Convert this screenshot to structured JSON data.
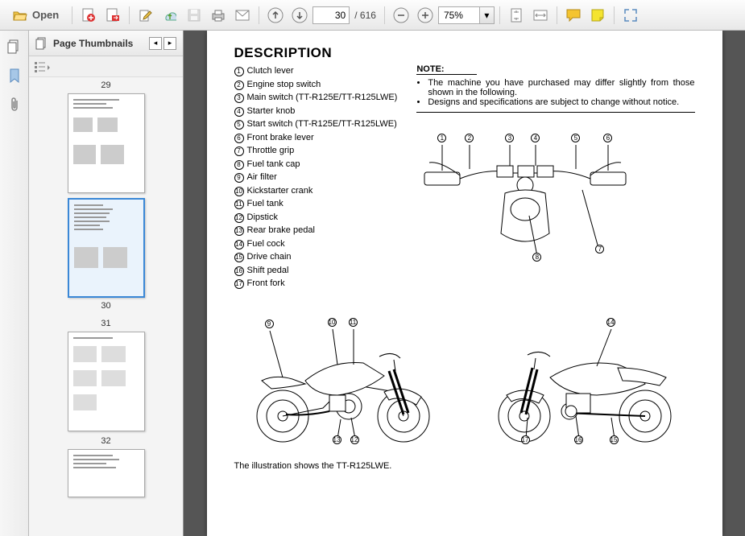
{
  "toolbar": {
    "open_label": "Open",
    "page_current": "30",
    "page_total": "/  616",
    "zoom_value": "75%"
  },
  "thumbs": {
    "title": "Page Thumbnails",
    "pages": [
      "29",
      "30",
      "31",
      "32"
    ],
    "selected_index": 1
  },
  "doc": {
    "heading": "DESCRIPTION",
    "parts": [
      "Clutch lever",
      "Engine stop switch",
      "Main switch (TT-R125E/TT-R125LWE)",
      "Starter knob",
      "Start switch (TT-R125E/TT-R125LWE)",
      "Front brake lever",
      "Throttle grip",
      "Fuel tank cap",
      "Air filter",
      "Kickstarter crank",
      "Fuel tank",
      "Dipstick",
      "Rear brake pedal",
      "Fuel cock",
      "Drive chain",
      "Shift pedal",
      "Front fork"
    ],
    "note_label": "NOTE:",
    "notes": [
      "The machine you have purchased may differ slightly from those shown in the following.",
      "Designs and specifications are subject to change without notice."
    ],
    "caption": "The illustration shows the TT-R125LWE.",
    "handlebar_callouts": [
      "1",
      "2",
      "3",
      "4",
      "5",
      "6",
      "7",
      "8"
    ],
    "moto_left_callouts": [
      "9",
      "10",
      "11",
      "12",
      "13"
    ],
    "moto_right_callouts": [
      "14",
      "15",
      "16",
      "17"
    ]
  },
  "colors": {
    "toolbar_bg_top": "#fdfdfd",
    "toolbar_bg_bot": "#e8e8e8",
    "doc_bg": "#555555",
    "selection": "#3a87d6",
    "folder": "#f3c94b",
    "pdf_red": "#d33",
    "green": "#5aa02c",
    "comment_yellow": "#f4c430"
  }
}
